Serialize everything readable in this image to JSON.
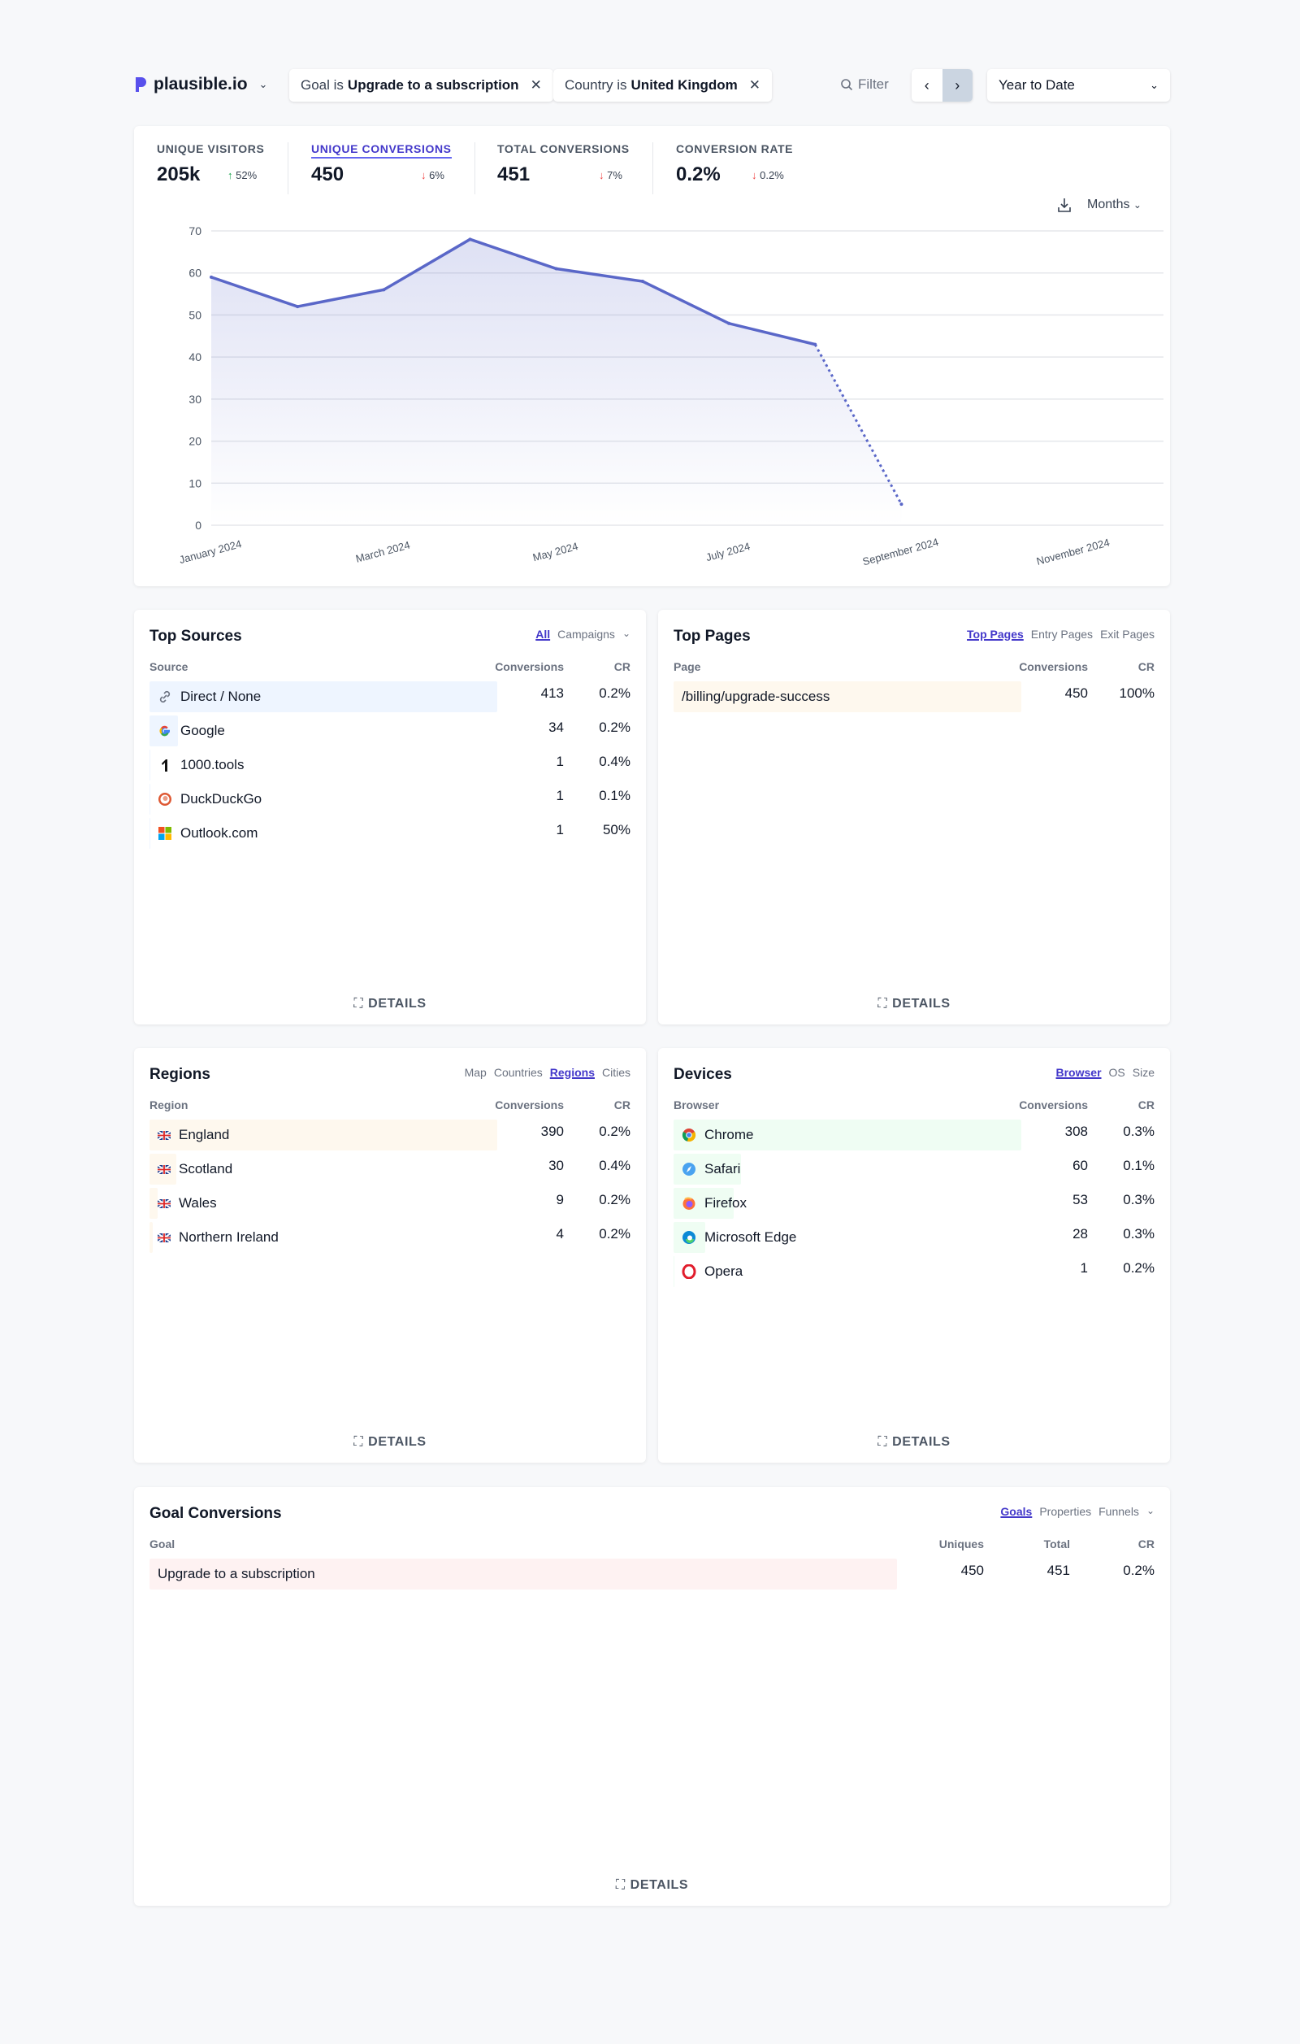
{
  "header": {
    "site": "plausible.io",
    "filters": [
      {
        "prefix": "Goal is",
        "value": "Upgrade to a subscription"
      },
      {
        "prefix": "Country is",
        "value": "United Kingdom"
      }
    ],
    "filter_label": "Filter",
    "period": "Year to Date"
  },
  "stats": [
    {
      "label": "UNIQUE VISITORS",
      "value": "205k",
      "change": "52%",
      "direction": "up"
    },
    {
      "label": "UNIQUE CONVERSIONS",
      "value": "450",
      "change": "6%",
      "direction": "down",
      "active": true
    },
    {
      "label": "TOTAL CONVERSIONS",
      "value": "451",
      "change": "7%",
      "direction": "down"
    },
    {
      "label": "CONVERSION RATE",
      "value": "0.2%",
      "change": "0.2%",
      "direction": "down"
    }
  ],
  "interval": "Months",
  "chart_data": {
    "type": "area",
    "x": [
      "January 2024",
      "February 2024",
      "March 2024",
      "April 2024",
      "May 2024",
      "June 2024",
      "July 2024",
      "August 2024",
      "September 2024"
    ],
    "values": [
      59,
      52,
      56,
      68,
      61,
      58,
      48,
      43,
      5
    ],
    "incomplete_last_point": true,
    "x_tick_labels": [
      "January 2024",
      "March 2024",
      "May 2024",
      "July 2024",
      "September 2024",
      "November 2024"
    ],
    "y_ticks": [
      0,
      10,
      20,
      30,
      40,
      50,
      60,
      70
    ],
    "ylim": [
      0,
      70
    ],
    "xlim": [
      "January 2024",
      "December 2024"
    ],
    "grid": true,
    "color": "#5a67c8"
  },
  "details_label": "DETAILS",
  "sources": {
    "title": "Top Sources",
    "tabs": [
      "All",
      "Campaigns"
    ],
    "active_tab": "All",
    "columns": [
      "Source",
      "Conversions",
      "CR"
    ],
    "bar_color": "#eef5ff",
    "rows": [
      {
        "name": "Direct / None",
        "conversions": 413,
        "cr": "0.2%",
        "icon": "link-icon"
      },
      {
        "name": "Google",
        "conversions": 34,
        "cr": "0.2%",
        "icon": "google-icon"
      },
      {
        "name": "1000.tools",
        "conversions": 1,
        "cr": "0.4%",
        "icon": "1000tools-icon"
      },
      {
        "name": "DuckDuckGo",
        "conversions": 1,
        "cr": "0.1%",
        "icon": "duckduckgo-icon"
      },
      {
        "name": "Outlook.com",
        "conversions": 1,
        "cr": "50%",
        "icon": "microsoft-icon"
      }
    ]
  },
  "pages": {
    "title": "Top Pages",
    "tabs": [
      "Top Pages",
      "Entry Pages",
      "Exit Pages"
    ],
    "active_tab": "Top Pages",
    "columns": [
      "Page",
      "Conversions",
      "CR"
    ],
    "bar_color": "#fef8ee",
    "rows": [
      {
        "name": "/billing/upgrade-success",
        "conversions": 450,
        "cr": "100%"
      }
    ]
  },
  "regions": {
    "title": "Regions",
    "tabs": [
      "Map",
      "Countries",
      "Regions",
      "Cities"
    ],
    "active_tab": "Regions",
    "columns": [
      "Region",
      "Conversions",
      "CR"
    ],
    "bar_color": "#fef8ee",
    "rows": [
      {
        "name": "England",
        "conversions": 390,
        "cr": "0.2%"
      },
      {
        "name": "Scotland",
        "conversions": 30,
        "cr": "0.4%"
      },
      {
        "name": "Wales",
        "conversions": 9,
        "cr": "0.2%"
      },
      {
        "name": "Northern Ireland",
        "conversions": 4,
        "cr": "0.2%"
      }
    ]
  },
  "devices": {
    "title": "Devices",
    "tabs": [
      "Browser",
      "OS",
      "Size"
    ],
    "active_tab": "Browser",
    "columns": [
      "Browser",
      "Conversions",
      "CR"
    ],
    "bar_color": "#effdf3",
    "rows": [
      {
        "name": "Chrome",
        "conversions": 308,
        "cr": "0.3%",
        "icon": "chrome-icon"
      },
      {
        "name": "Safari",
        "conversions": 60,
        "cr": "0.1%",
        "icon": "safari-icon"
      },
      {
        "name": "Firefox",
        "conversions": 53,
        "cr": "0.3%",
        "icon": "firefox-icon"
      },
      {
        "name": "Microsoft Edge",
        "conversions": 28,
        "cr": "0.3%",
        "icon": "edge-icon"
      },
      {
        "name": "Opera",
        "conversions": 1,
        "cr": "0.2%",
        "icon": "opera-icon"
      }
    ]
  },
  "goals": {
    "title": "Goal Conversions",
    "tabs": [
      "Goals",
      "Properties",
      "Funnels"
    ],
    "active_tab": "Goals",
    "columns": [
      "Goal",
      "Uniques",
      "Total",
      "CR"
    ],
    "bar_color": "#fef2f2",
    "rows": [
      {
        "name": "Upgrade to a subscription",
        "uniques": 450,
        "total": 451,
        "cr": "0.2%"
      }
    ]
  }
}
